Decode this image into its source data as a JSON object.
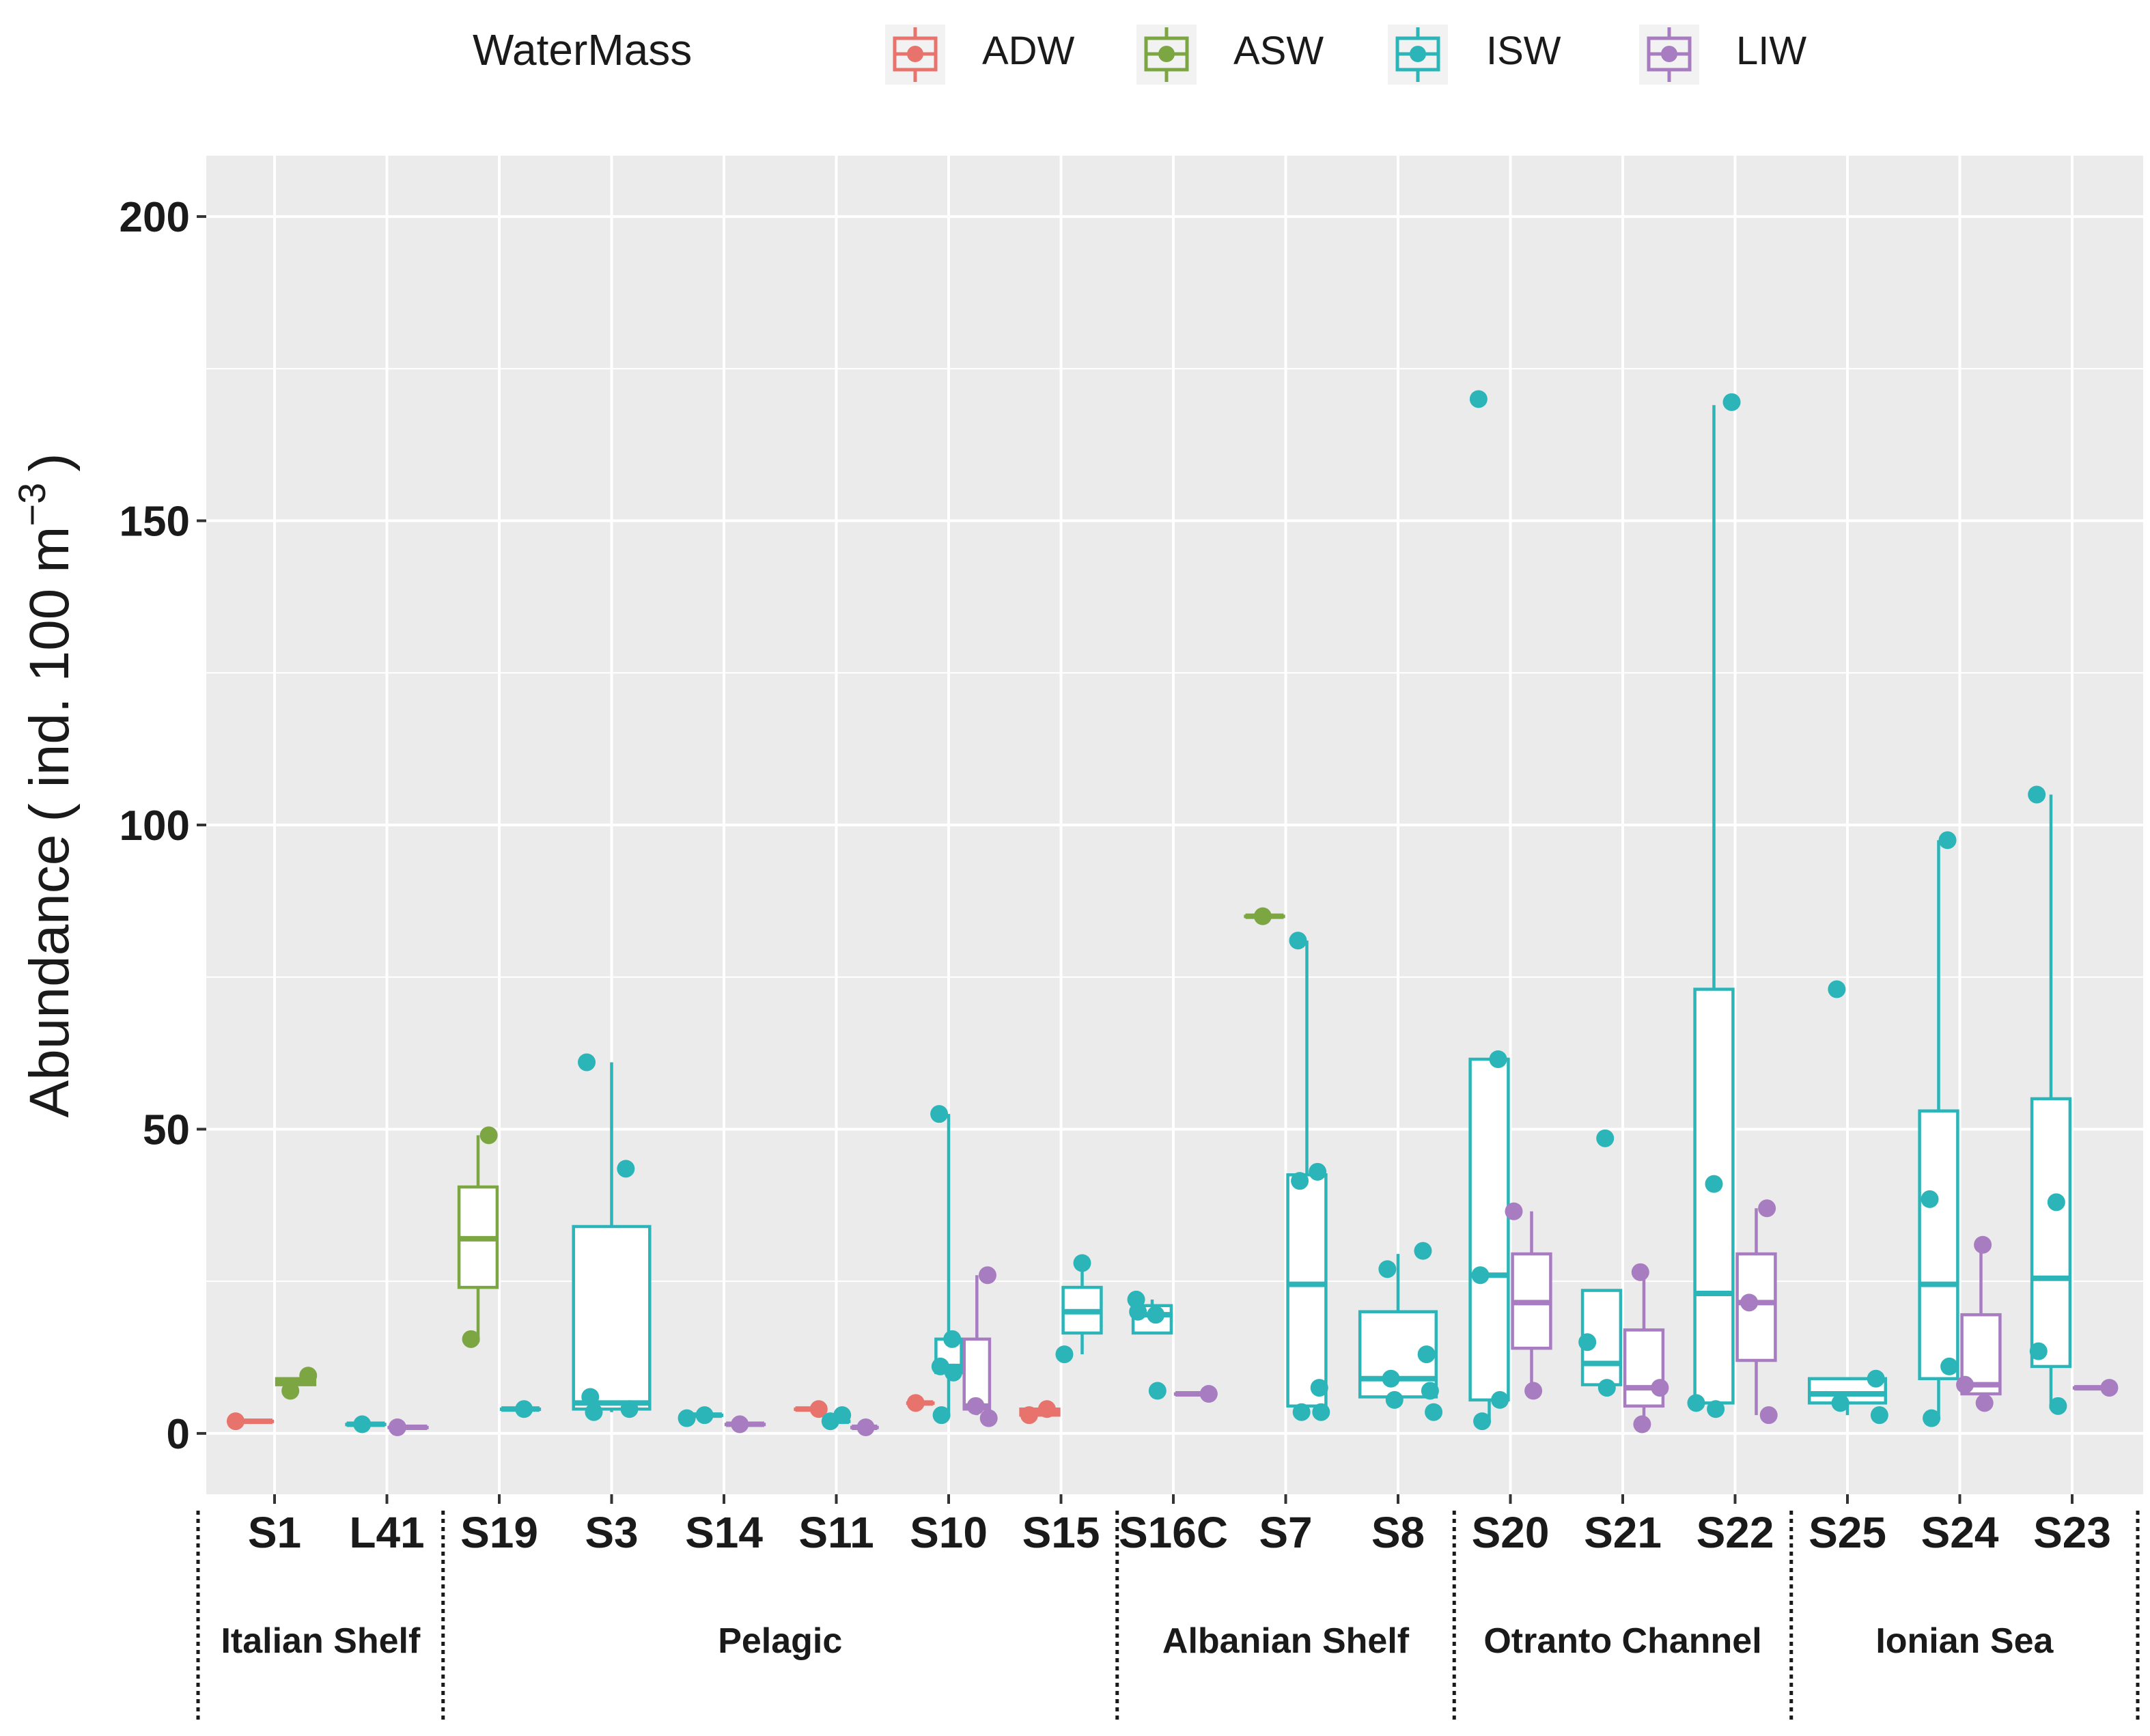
{
  "chart_data": {
    "type": "boxplot",
    "title": "",
    "ylabel_main": "Abundance",
    "ylabel_units_open": "( ind.  100 m",
    "ylabel_units_exp": "−3",
    "ylabel_units_close": ")",
    "xlabel": "",
    "ylim": [
      -10,
      210
    ],
    "yticks": [
      0,
      50,
      100,
      150,
      200
    ],
    "legend": {
      "title": "WaterMass",
      "position": "top",
      "entries": [
        {
          "key": "ADW",
          "label": "ADW",
          "color": "#E8736C"
        },
        {
          "key": "ASW",
          "label": "ASW",
          "color": "#7CA642"
        },
        {
          "key": "ISW",
          "label": "ISW",
          "color": "#2BB5B8"
        },
        {
          "key": "LIW",
          "label": "LIW",
          "color": "#A77CC0"
        }
      ]
    },
    "categories": [
      "S1",
      "L41",
      "S19",
      "S3",
      "S14",
      "S11",
      "S10",
      "S15",
      "S16C",
      "S7",
      "S8",
      "S20",
      "S21",
      "S22",
      "S25",
      "S24",
      "S23"
    ],
    "regions": [
      {
        "label": "Italian Shelf",
        "from": 0,
        "to": 1
      },
      {
        "label": "Pelagic",
        "from": 2,
        "to": 7
      },
      {
        "label": "Albanian Shelf",
        "from": 8,
        "to": 10
      },
      {
        "label": "Otranto Channel",
        "from": 11,
        "to": 13
      },
      {
        "label": "Ionian Sea",
        "from": 14,
        "to": 16
      }
    ],
    "boxes": [
      {
        "station": "S1",
        "mass": "ADW",
        "lo": 2,
        "q1": 2,
        "med": 2,
        "q3": 2,
        "hi": 2,
        "points": [
          2
        ]
      },
      {
        "station": "S1",
        "mass": "ASW",
        "lo": 8,
        "q1": 8,
        "med": 8.5,
        "q3": 9,
        "hi": 9,
        "points": [
          9.5,
          7
        ]
      },
      {
        "station": "L41",
        "mass": "ISW",
        "lo": 1.5,
        "q1": 1.5,
        "med": 1.5,
        "q3": 1.5,
        "hi": 1.5,
        "points": [
          1.5
        ]
      },
      {
        "station": "L41",
        "mass": "LIW",
        "lo": 1,
        "q1": 1,
        "med": 1,
        "q3": 1,
        "hi": 1,
        "points": [
          1
        ]
      },
      {
        "station": "S19",
        "mass": "ASW",
        "lo": 15,
        "q1": 24,
        "med": 32,
        "q3": 40.5,
        "hi": 49,
        "points": [
          49,
          15.5
        ]
      },
      {
        "station": "S19",
        "mass": "ISW",
        "lo": 4,
        "q1": 4,
        "med": 4,
        "q3": 4,
        "hi": 4,
        "points": [
          4
        ]
      },
      {
        "station": "S3",
        "mass": "ISW",
        "lo": 3.5,
        "q1": 4,
        "med": 5,
        "q3": 34,
        "hi": 61,
        "points": [
          61,
          43.5,
          6,
          4,
          3.5
        ]
      },
      {
        "station": "S14",
        "mass": "ISW",
        "lo": 3,
        "q1": 3,
        "med": 3,
        "q3": 3,
        "hi": 3,
        "points": [
          3,
          2.5
        ]
      },
      {
        "station": "S14",
        "mass": "LIW",
        "lo": 1.5,
        "q1": 1.5,
        "med": 1.5,
        "q3": 1.5,
        "hi": 1.5,
        "points": [
          1.5
        ]
      },
      {
        "station": "S11",
        "mass": "ADW",
        "lo": 4,
        "q1": 4,
        "med": 4,
        "q3": 4,
        "hi": 4,
        "points": [
          4
        ]
      },
      {
        "station": "S11",
        "mass": "ISW",
        "lo": 2,
        "q1": 2,
        "med": 2,
        "q3": 2,
        "hi": 2,
        "points": [
          3,
          2
        ]
      },
      {
        "station": "S11",
        "mass": "LIW",
        "lo": 1,
        "q1": 1,
        "med": 1,
        "q3": 1,
        "hi": 1,
        "points": [
          1
        ]
      },
      {
        "station": "S10",
        "mass": "ADW",
        "lo": 5,
        "q1": 5,
        "med": 5,
        "q3": 5,
        "hi": 5,
        "points": [
          5
        ]
      },
      {
        "station": "S10",
        "mass": "ISW",
        "lo": 3,
        "q1": 10,
        "med": 11,
        "q3": 15.5,
        "hi": 52.5,
        "points": [
          52.5,
          15.5,
          11,
          10,
          3
        ]
      },
      {
        "station": "S10",
        "mass": "LIW",
        "lo": 3,
        "q1": 4,
        "med": 4.5,
        "q3": 15.5,
        "hi": 26,
        "points": [
          26,
          4.5,
          2.5
        ]
      },
      {
        "station": "S15",
        "mass": "ADW",
        "lo": 3,
        "q1": 3,
        "med": 3.5,
        "q3": 4,
        "hi": 4,
        "points": [
          4,
          3
        ]
      },
      {
        "station": "S15",
        "mass": "ISW",
        "lo": 13,
        "q1": 16.5,
        "med": 20,
        "q3": 24,
        "hi": 28,
        "points": [
          28,
          13
        ]
      },
      {
        "station": "S16C",
        "mass": "ISW",
        "lo": 16.5,
        "q1": 16.5,
        "med": 19.5,
        "q3": 21,
        "hi": 22,
        "points": [
          22,
          19.5,
          20,
          7
        ]
      },
      {
        "station": "S16C",
        "mass": "LIW",
        "lo": 6.5,
        "q1": 6.5,
        "med": 6.5,
        "q3": 6.5,
        "hi": 6.5,
        "points": [
          6.5
        ]
      },
      {
        "station": "S7",
        "mass": "ASW",
        "lo": 85,
        "q1": 85,
        "med": 85,
        "q3": 85,
        "hi": 85,
        "points": [
          85
        ]
      },
      {
        "station": "S7",
        "mass": "ISW",
        "lo": 3.5,
        "q1": 4.5,
        "med": 24.5,
        "q3": 42.5,
        "hi": 81,
        "points": [
          81,
          43,
          41.5,
          7.5,
          3.5,
          3.5
        ]
      },
      {
        "station": "S8",
        "mass": "ISW",
        "lo": 5.5,
        "q1": 6,
        "med": 9,
        "q3": 20,
        "hi": 29.5,
        "points": [
          30,
          27,
          13,
          9,
          7,
          5.5,
          3.5
        ]
      },
      {
        "station": "S20",
        "mass": "ISW",
        "lo": 2,
        "q1": 5.5,
        "med": 26,
        "q3": 61.5,
        "hi": 61.5,
        "points": [
          170,
          61.5,
          26,
          5.5,
          2
        ]
      },
      {
        "station": "S20",
        "mass": "LIW",
        "lo": 7,
        "q1": 14,
        "med": 21.5,
        "q3": 29.5,
        "hi": 36.5,
        "points": [
          36.5,
          7
        ]
      },
      {
        "station": "S21",
        "mass": "ISW",
        "lo": 7,
        "q1": 8,
        "med": 11.5,
        "q3": 23.5,
        "hi": 23.5,
        "points": [
          48.5,
          15,
          7.5
        ]
      },
      {
        "station": "S21",
        "mass": "LIW",
        "lo": 1.5,
        "q1": 4.5,
        "med": 7.5,
        "q3": 17,
        "hi": 26.5,
        "points": [
          26.5,
          7.5,
          1.5
        ]
      },
      {
        "station": "S22",
        "mass": "ISW",
        "lo": 4,
        "q1": 5,
        "med": 23,
        "q3": 73,
        "hi": 169,
        "points": [
          169.5,
          41,
          5,
          4
        ]
      },
      {
        "station": "S22",
        "mass": "LIW",
        "lo": 3,
        "q1": 12,
        "med": 21.5,
        "q3": 29.5,
        "hi": 37,
        "points": [
          37,
          21.5,
          3
        ]
      },
      {
        "station": "S25",
        "mass": "ISW",
        "lo": 3,
        "q1": 5,
        "med": 6.5,
        "q3": 9,
        "hi": 9,
        "points": [
          73,
          9,
          5,
          3
        ]
      },
      {
        "station": "S24",
        "mass": "ISW",
        "lo": 2.5,
        "q1": 9,
        "med": 24.5,
        "q3": 53,
        "hi": 97.5,
        "points": [
          97.5,
          38.5,
          11,
          2.5
        ]
      },
      {
        "station": "S24",
        "mass": "LIW",
        "lo": 5,
        "q1": 6.5,
        "med": 8,
        "q3": 19.5,
        "hi": 31,
        "points": [
          31,
          8,
          5
        ]
      },
      {
        "station": "S23",
        "mass": "ISW",
        "lo": 4,
        "q1": 11,
        "med": 25.5,
        "q3": 55,
        "hi": 105,
        "points": [
          105,
          38,
          13.5,
          4.5
        ]
      },
      {
        "station": "S23",
        "mass": "LIW",
        "lo": 7.5,
        "q1": 7.5,
        "med": 7.5,
        "q3": 7.5,
        "hi": 7.5,
        "points": [
          7.5
        ]
      }
    ]
  }
}
